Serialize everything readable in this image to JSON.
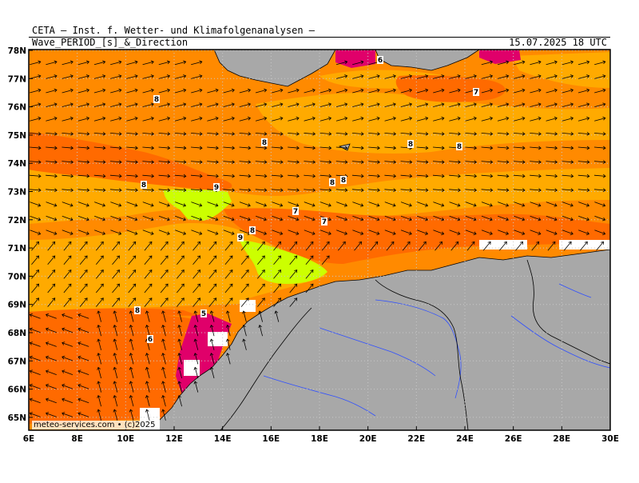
{
  "header": {
    "title": "CETA — Inst. f. Wetter- und Klimafolgenanalysen —",
    "parameter": "Wave_PERIOD_[s]_&_Direction",
    "valid_time": "15.07.2025 18 UTC"
  },
  "footer": {
    "credit": "meteo-services.com • (c)2025"
  },
  "axes": {
    "lat_labels": [
      "78N",
      "77N",
      "76N",
      "75N",
      "74N",
      "73N",
      "72N",
      "71N",
      "70N",
      "69N",
      "68N",
      "67N",
      "66N",
      "65N"
    ],
    "lon_labels": [
      "6E",
      "8E",
      "10E",
      "12E",
      "14E",
      "16E",
      "18E",
      "20E",
      "22E",
      "24E",
      "26E",
      "28E",
      "30E"
    ]
  },
  "contour_labels": [
    "8",
    "6",
    "7",
    "8",
    "8",
    "8",
    "8",
    "8",
    "7",
    "9",
    "8",
    "7",
    "9",
    "8",
    "8",
    "5",
    "6"
  ],
  "colors": {
    "period_5": "#e0006a",
    "period_6": "#ff6a00",
    "period_7": "#ff8a00",
    "period_8": "#ffaa00",
    "period_9": "#ccff00",
    "low_period": "#ff00ff",
    "land": "#a8a8a8",
    "grid": "#c8c8c8",
    "rivers": "#3050ff"
  }
}
